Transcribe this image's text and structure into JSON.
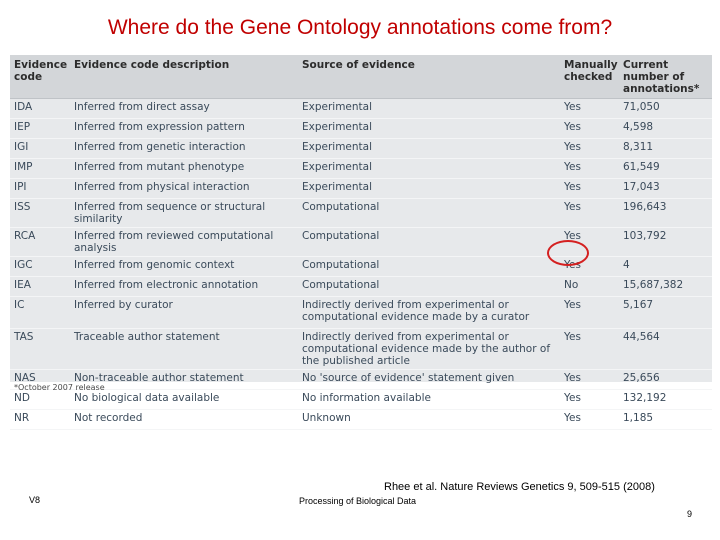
{
  "slide": {
    "title": "Where do the Gene Ontology annotations come from?",
    "citation": "Rhee et al. Nature Reviews Genetics 9, 509-515 (2008)",
    "version": "V8",
    "course": "Processing of Biological Data",
    "page_number": "9"
  },
  "table": {
    "headers": {
      "code": "Evidence code",
      "description": "Evidence code description",
      "source": "Source of evidence",
      "checked": "Manually checked",
      "count": "Current number of annotations*"
    },
    "rows": [
      {
        "code": "IDA",
        "description": "Inferred from direct assay",
        "source": "Experimental",
        "checked": "Yes",
        "count": "71,050"
      },
      {
        "code": "IEP",
        "description": "Inferred from expression pattern",
        "source": "Experimental",
        "checked": "Yes",
        "count": "4,598"
      },
      {
        "code": "IGI",
        "description": "Inferred from genetic interaction",
        "source": "Experimental",
        "checked": "Yes",
        "count": "8,311"
      },
      {
        "code": "IMP",
        "description": "Inferred from mutant phenotype",
        "source": "Experimental",
        "checked": "Yes",
        "count": "61,549"
      },
      {
        "code": "IPI",
        "description": "Inferred from physical interaction",
        "source": "Experimental",
        "checked": "Yes",
        "count": "17,043"
      },
      {
        "code": "ISS",
        "description": "Inferred from sequence or structural similarity",
        "source": "Computational",
        "checked": "Yes",
        "count": "196,643"
      },
      {
        "code": "RCA",
        "description": "Inferred from reviewed computational analysis",
        "source": "Computational",
        "checked": "Yes",
        "count": "103,792"
      },
      {
        "code": "IGC",
        "description": "Inferred from genomic context",
        "source": "Computational",
        "checked": "Yes",
        "count": "4"
      },
      {
        "code": "IEA",
        "description": "Inferred from electronic annotation",
        "source": "Computational",
        "checked": "No",
        "count": "15,687,382"
      },
      {
        "code": "IC",
        "description": "Inferred by curator",
        "source": "Indirectly derived from experimental or computational evidence made by a curator",
        "checked": "Yes",
        "count": "5,167"
      },
      {
        "code": "TAS",
        "description": "Traceable author statement",
        "source": "Indirectly derived from experimental or computational evidence made by the author of the published article",
        "checked": "Yes",
        "count": "44,564"
      },
      {
        "code": "NAS",
        "description": "Non-traceable author statement",
        "source": "No 'source of evidence' statement given",
        "checked": "Yes",
        "count": "25,656"
      },
      {
        "code": "ND",
        "description": "No biological data available",
        "source": "No information available",
        "checked": "Yes",
        "count": "132,192"
      },
      {
        "code": "NR",
        "description": "Not recorded",
        "source": "Unknown",
        "checked": "Yes",
        "count": "1,185"
      }
    ],
    "footnote": "*October 2007 release",
    "highlight_color": "#d42020"
  }
}
